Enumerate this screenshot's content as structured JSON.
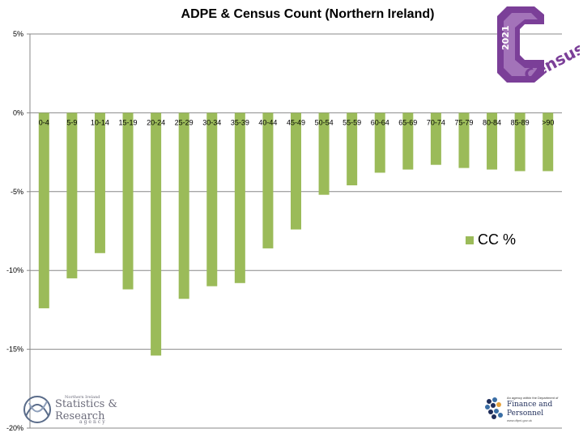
{
  "chart_data": {
    "type": "bar",
    "title": "ADPE & Census Count (Northern Ireland)",
    "categories": [
      "0-4",
      "5-9",
      "10-14",
      "15-19",
      "20-24",
      "25-29",
      "30-34",
      "35-39",
      "40-44",
      "45-49",
      "50-54",
      "55-59",
      "60-64",
      "65-69",
      "70-74",
      "75-79",
      "80-84",
      "85-89",
      ">90"
    ],
    "series": [
      {
        "name": "CC %",
        "color": "#9bbb59",
        "values": [
          -12.4,
          -10.5,
          -8.9,
          -11.2,
          -15.4,
          -11.8,
          -11.0,
          -10.8,
          -8.6,
          -7.4,
          -5.2,
          -4.6,
          -3.8,
          -3.6,
          -3.3,
          -3.5,
          -3.6,
          -3.7,
          -3.7
        ]
      }
    ],
    "yticks": [
      5,
      0,
      -5,
      -10,
      -15,
      -20
    ],
    "ytick_labels": [
      "5%",
      "0%",
      "-5%",
      "-10%",
      "-15%",
      "-20%"
    ],
    "ylim": [
      -20,
      5
    ],
    "grid": true,
    "legend_position": "right"
  },
  "logos": {
    "census": {
      "year": "2021",
      "word": "Census",
      "color": "#7b3f98"
    },
    "nisra": {
      "small": "Northern Ireland",
      "line1": "Statistics &",
      "line2": "Research",
      "agency": "agency"
    },
    "dfp": {
      "small": "An agency within the Department of",
      "line1": "Finance and",
      "line2": "Personnel",
      "url": "www.dfpni.gov.uk"
    }
  }
}
